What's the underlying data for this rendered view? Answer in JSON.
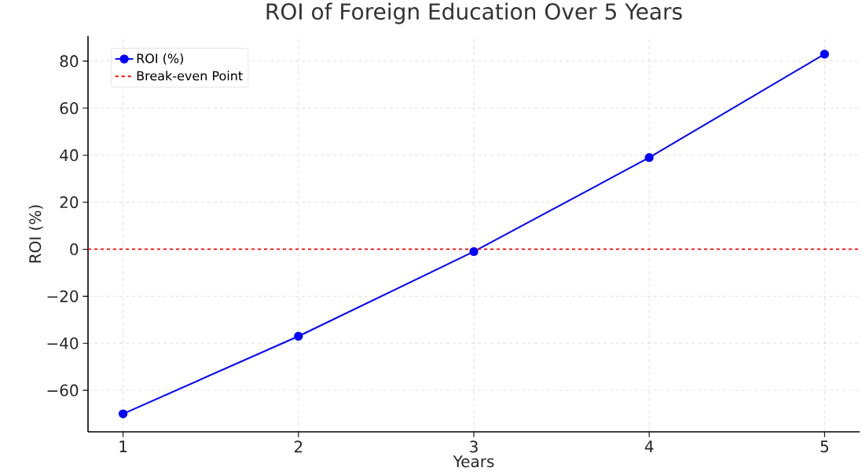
{
  "chart_data": {
    "type": "line",
    "title": "ROI of Foreign Education Over 5 Years",
    "xlabel": "Years",
    "ylabel": "ROI (%)",
    "x": [
      1,
      2,
      3,
      4,
      5
    ],
    "series": [
      {
        "name": "ROI (%)",
        "color": "#0000ff",
        "values": [
          -70,
          -37,
          -1,
          39,
          83
        ]
      }
    ],
    "ref_lines": [
      {
        "axis": "y",
        "value": 0,
        "label": "Break-even Point",
        "color": "#ff0000",
        "line_style": "dashed"
      }
    ],
    "xlim": [
      0.8,
      5.2
    ],
    "ylim": [
      -77.65,
      90.65
    ],
    "xticks": [
      1,
      2,
      3,
      4,
      5
    ],
    "yticks": [
      {
        "value": -60,
        "label": "−60"
      },
      {
        "value": -40,
        "label": "−40"
      },
      {
        "value": -20,
        "label": "−20"
      },
      0,
      20,
      40,
      60,
      80
    ],
    "grid": true,
    "legend": "top left",
    "marker": "circle",
    "line_style": "solid"
  }
}
